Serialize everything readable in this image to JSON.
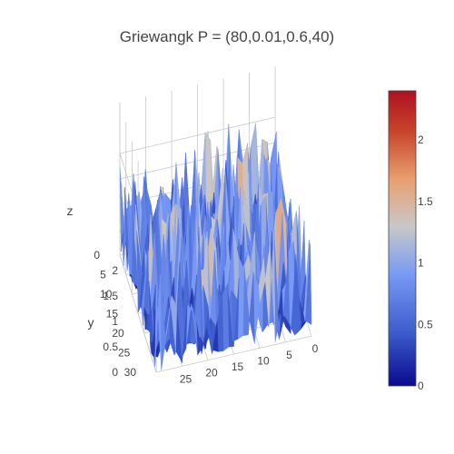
{
  "chart_data": {
    "type": "surface",
    "title": "Griewangk P = (80,0.01,0.6,40)",
    "axes": {
      "x": {
        "label": "",
        "range": [
          0,
          30
        ],
        "ticks": [
          "0",
          "5",
          "10",
          "15",
          "20",
          "25"
        ]
      },
      "y": {
        "label": "y",
        "range": [
          0,
          30
        ],
        "ticks": [
          "0",
          "5",
          "10",
          "15",
          "20",
          "25",
          "30"
        ]
      },
      "z": {
        "label": "z",
        "range": [
          0,
          2.3
        ],
        "ticks": [
          "0",
          "0.5",
          "1",
          "1.5",
          "2"
        ]
      }
    },
    "colorbar": {
      "ticks": [
        "0",
        "0.5",
        "1",
        "1.5",
        "2"
      ],
      "range": [
        0,
        2.4
      ],
      "colorscale": [
        "#0a0a8c",
        "#3c5ccc",
        "#7a9af5",
        "#c8c8c8",
        "#e8a070",
        "#c8452c",
        "#b01020"
      ]
    },
    "grid": true
  }
}
